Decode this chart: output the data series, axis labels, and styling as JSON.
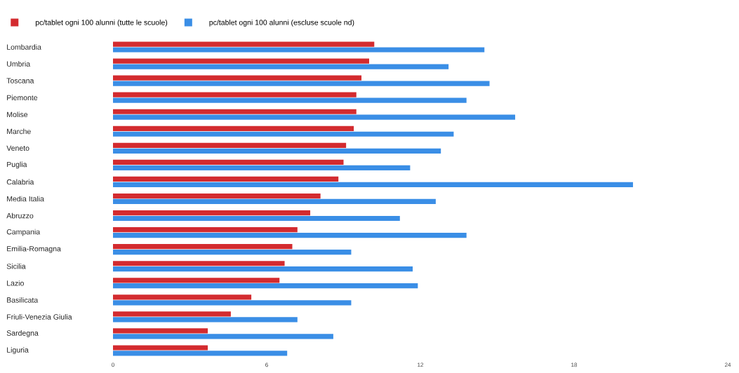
{
  "chart_data": {
    "type": "bar",
    "orientation": "horizontal",
    "categories": [
      "Lombardia",
      "Umbria",
      "Toscana",
      "Piemonte",
      "Molise",
      "Marche",
      "Veneto",
      "Puglia",
      "Calabria",
      "Media Italia",
      "Abruzzo",
      "Campania",
      "Emilia-Romagna",
      "Sicilia",
      "Lazio",
      "Basilicata",
      "Friuli-Venezia Giulia",
      "Sardegna",
      "Liguria"
    ],
    "series": [
      {
        "name": "pc/tablet ogni 100 alunni (tutte le scuole)",
        "color": "#d32b2f",
        "values": [
          10.2,
          10.0,
          9.7,
          9.5,
          9.5,
          9.4,
          9.1,
          9.0,
          8.8,
          8.1,
          7.7,
          7.2,
          7.0,
          6.7,
          6.5,
          5.4,
          4.6,
          3.7,
          3.7
        ]
      },
      {
        "name": "pc/tablet ogni 100 alunni (escluse scuole nd)",
        "color": "#3a8ee6",
        "values": [
          14.5,
          13.1,
          14.7,
          13.8,
          15.7,
          13.3,
          12.8,
          11.6,
          20.3,
          12.6,
          11.2,
          13.8,
          9.3,
          11.7,
          11.9,
          9.3,
          7.2,
          8.6,
          6.8
        ]
      }
    ],
    "xlim": [
      0,
      24
    ],
    "xticks": [
      0,
      6,
      12,
      18,
      24
    ],
    "grid": false,
    "legend": "top left"
  }
}
